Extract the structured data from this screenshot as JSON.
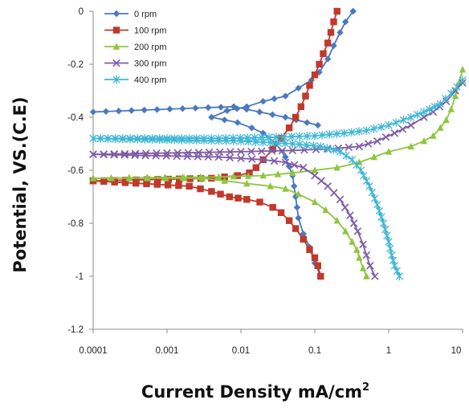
{
  "chart_data": {
    "type": "line",
    "title": "",
    "xlabel": "Current Density mA/cm",
    "xlabel_superscript": "2",
    "ylabel": "Potential, VS.(C.E)",
    "x_scale": "log",
    "xlim": [
      0.0001,
      10
    ],
    "ylim": [
      -1.2,
      0
    ],
    "x_ticks": [
      "0.0001",
      "0.001",
      "0.01",
      "0.1",
      "1",
      "10"
    ],
    "y_ticks": [
      "0",
      "-0.2",
      "-0.4",
      "-0.6",
      "-0.8",
      "-1",
      "-1.2"
    ],
    "grid": false,
    "legend": {
      "position": "top-left"
    },
    "series": [
      {
        "name": "0 rpm",
        "color": "#4a78c2",
        "marker": "diamond",
        "cathodic": [
          [
            0.0001,
            -0.38
          ],
          [
            0.008,
            -0.36
          ],
          [
            0.04,
            -0.4
          ],
          [
            0.11,
            -0.43
          ]
        ],
        "anodic": [
          [
            0.33,
            0
          ],
          [
            0.26,
            -0.04
          ],
          [
            0.22,
            -0.08
          ],
          [
            0.18,
            -0.13
          ],
          [
            0.15,
            -0.18
          ],
          [
            0.115,
            -0.23
          ],
          [
            0.09,
            -0.26
          ],
          [
            0.06,
            -0.29
          ],
          [
            0.04,
            -0.32
          ],
          [
            0.02,
            -0.34
          ],
          [
            0.012,
            -0.36
          ],
          [
            0.0065,
            -0.375
          ],
          [
            0.004,
            -0.4
          ],
          [
            0.006,
            -0.41
          ],
          [
            0.009,
            -0.42
          ],
          [
            0.014,
            -0.44
          ],
          [
            0.02,
            -0.46
          ],
          [
            0.03,
            -0.5
          ],
          [
            0.04,
            -0.55
          ],
          [
            0.05,
            -0.62
          ],
          [
            0.055,
            -0.7
          ],
          [
            0.06,
            -0.78
          ],
          [
            0.07,
            -0.84
          ],
          [
            0.085,
            -0.89
          ],
          [
            0.1,
            -0.95
          ],
          [
            0.12,
            -1.0
          ]
        ]
      },
      {
        "name": "100 rpm",
        "color": "#c0392b",
        "marker": "square",
        "anodic": [
          [
            0.2,
            0
          ],
          [
            0.18,
            -0.04
          ],
          [
            0.165,
            -0.08
          ],
          [
            0.15,
            -0.12
          ],
          [
            0.13,
            -0.16
          ],
          [
            0.115,
            -0.2
          ],
          [
            0.1,
            -0.24
          ],
          [
            0.085,
            -0.28
          ],
          [
            0.075,
            -0.32
          ],
          [
            0.065,
            -0.36
          ],
          [
            0.055,
            -0.4
          ],
          [
            0.045,
            -0.44
          ],
          [
            0.035,
            -0.48
          ],
          [
            0.027,
            -0.52
          ],
          [
            0.02,
            -0.56
          ],
          [
            0.016,
            -0.59
          ],
          [
            0.013,
            -0.61
          ],
          [
            0.009,
            -0.62
          ],
          [
            0.004,
            -0.63
          ],
          [
            0.0001,
            -0.64
          ]
        ],
        "cathodic": [
          [
            0.0001,
            -0.64
          ],
          [
            0.002,
            -0.66
          ],
          [
            0.004,
            -0.68
          ],
          [
            0.007,
            -0.7
          ],
          [
            0.012,
            -0.71
          ],
          [
            0.018,
            -0.72
          ],
          [
            0.027,
            -0.74
          ],
          [
            0.035,
            -0.76
          ],
          [
            0.045,
            -0.79
          ],
          [
            0.055,
            -0.82
          ],
          [
            0.07,
            -0.86
          ],
          [
            0.085,
            -0.9
          ],
          [
            0.1,
            -0.93
          ],
          [
            0.11,
            -0.96
          ],
          [
            0.12,
            -1.0
          ]
        ]
      },
      {
        "name": "200 rpm",
        "color": "#8dc63f",
        "marker": "triangle",
        "anodic": [
          [
            10,
            -0.22
          ],
          [
            9,
            -0.27
          ],
          [
            8,
            -0.32
          ],
          [
            7,
            -0.37
          ],
          [
            6,
            -0.41
          ],
          [
            5,
            -0.44
          ],
          [
            4,
            -0.47
          ],
          [
            3,
            -0.49
          ],
          [
            2,
            -0.51
          ],
          [
            1,
            -0.53
          ],
          [
            0.4,
            -0.57
          ],
          [
            0.2,
            -0.59
          ],
          [
            0.1,
            -0.6
          ],
          [
            0.05,
            -0.61
          ],
          [
            0.02,
            -0.62
          ],
          [
            0.005,
            -0.625
          ],
          [
            0.0001,
            -0.63
          ]
        ],
        "cathodic": [
          [
            0.0001,
            -0.63
          ],
          [
            0.003,
            -0.63
          ],
          [
            0.006,
            -0.64
          ],
          [
            0.012,
            -0.65
          ],
          [
            0.025,
            -0.66
          ],
          [
            0.04,
            -0.67
          ],
          [
            0.06,
            -0.69
          ],
          [
            0.1,
            -0.72
          ],
          [
            0.14,
            -0.75
          ],
          [
            0.2,
            -0.79
          ],
          [
            0.26,
            -0.83
          ],
          [
            0.32,
            -0.87
          ],
          [
            0.37,
            -0.9
          ],
          [
            0.4,
            -0.93
          ],
          [
            0.45,
            -0.97
          ],
          [
            0.5,
            -1.0
          ]
        ]
      },
      {
        "name": "300 rpm",
        "color": "#7d5ca6",
        "marker": "x",
        "anodic": [
          [
            10,
            -0.27
          ],
          [
            8,
            -0.3
          ],
          [
            6,
            -0.34
          ],
          [
            4,
            -0.38
          ],
          [
            3,
            -0.4
          ],
          [
            2,
            -0.43
          ],
          [
            1.2,
            -0.46
          ],
          [
            0.7,
            -0.49
          ],
          [
            0.4,
            -0.51
          ],
          [
            0.15,
            -0.52
          ],
          [
            0.05,
            -0.525
          ],
          [
            0.01,
            -0.53
          ],
          [
            0.0001,
            -0.54
          ]
        ],
        "cathodic": [
          [
            0.0001,
            -0.54
          ],
          [
            0.005,
            -0.55
          ],
          [
            0.02,
            -0.56
          ],
          [
            0.04,
            -0.57
          ],
          [
            0.07,
            -0.59
          ],
          [
            0.1,
            -0.62
          ],
          [
            0.15,
            -0.66
          ],
          [
            0.22,
            -0.71
          ],
          [
            0.3,
            -0.77
          ],
          [
            0.38,
            -0.83
          ],
          [
            0.45,
            -0.88
          ],
          [
            0.5,
            -0.92
          ],
          [
            0.56,
            -0.96
          ],
          [
            0.65,
            -1.0
          ]
        ]
      },
      {
        "name": "400 rpm",
        "color": "#3fb7d6",
        "marker": "star",
        "anodic": [
          [
            10,
            -0.26
          ],
          [
            7,
            -0.31
          ],
          [
            5,
            -0.35
          ],
          [
            3,
            -0.38
          ],
          [
            2,
            -0.4
          ],
          [
            1,
            -0.43
          ],
          [
            0.5,
            -0.45
          ],
          [
            0.25,
            -0.46
          ],
          [
            0.1,
            -0.47
          ],
          [
            0.03,
            -0.475
          ],
          [
            0.005,
            -0.48
          ],
          [
            0.0001,
            -0.48
          ]
        ],
        "cathodic": [
          [
            0.0001,
            -0.48
          ],
          [
            0.01,
            -0.49
          ],
          [
            0.05,
            -0.5
          ],
          [
            0.12,
            -0.51
          ],
          [
            0.22,
            -0.53
          ],
          [
            0.32,
            -0.56
          ],
          [
            0.42,
            -0.6
          ],
          [
            0.55,
            -0.66
          ],
          [
            0.7,
            -0.73
          ],
          [
            0.85,
            -0.8
          ],
          [
            1.0,
            -0.87
          ],
          [
            1.1,
            -0.92
          ],
          [
            1.2,
            -0.96
          ],
          [
            1.4,
            -1.0
          ]
        ]
      }
    ]
  }
}
